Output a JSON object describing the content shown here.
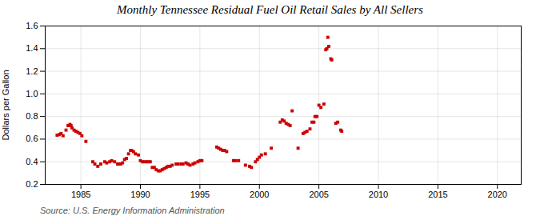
{
  "chart_data": {
    "type": "scatter",
    "title": "Monthly Tennessee Residual Fuel Oil Retail Sales by All Sellers",
    "ylabel": "Dollars per Gallon",
    "source": "Source: U.S. Energy Information Administration",
    "x": [
      1983.0,
      1983.17,
      1983.33,
      1983.5,
      1983.75,
      1983.92,
      1984.08,
      1984.17,
      1984.25,
      1984.42,
      1984.58,
      1984.75,
      1984.92,
      1985.08,
      1985.42,
      1986.0,
      1986.17,
      1986.42,
      1986.67,
      1987.0,
      1987.17,
      1987.42,
      1987.58,
      1987.83,
      1988.08,
      1988.17,
      1988.33,
      1988.5,
      1988.67,
      1988.83,
      1989.0,
      1989.17,
      1989.25,
      1989.42,
      1989.58,
      1989.83,
      1990.0,
      1990.17,
      1990.33,
      1990.5,
      1990.67,
      1990.83,
      1991.0,
      1991.17,
      1991.33,
      1991.5,
      1991.67,
      1991.83,
      1992.0,
      1992.17,
      1992.33,
      1992.5,
      1992.67,
      1993.0,
      1993.17,
      1993.42,
      1993.58,
      1993.83,
      1994.0,
      1994.17,
      1994.42,
      1994.58,
      1994.83,
      1995.0,
      1995.17,
      1996.42,
      1996.58,
      1996.75,
      1996.92,
      1997.08,
      1997.25,
      1997.83,
      1998.0,
      1998.25,
      1998.83,
      1999.17,
      1999.33,
      1999.67,
      1999.83,
      2000.0,
      2000.17,
      2000.5,
      2001.0,
      2001.75,
      2001.92,
      2002.08,
      2002.25,
      2002.42,
      2002.58,
      2002.75,
      2003.25,
      2003.67,
      2003.83,
      2004.0,
      2004.25,
      2004.42,
      2004.58,
      2004.67,
      2004.83,
      2005.0,
      2005.17,
      2005.42,
      2005.58,
      2005.67,
      2005.75,
      2005.83,
      2006.0,
      2006.08,
      2006.42,
      2006.58,
      2006.83,
      2006.92
    ],
    "values": [
      0.635,
      0.64,
      0.65,
      0.63,
      0.68,
      0.72,
      0.73,
      0.72,
      0.7,
      0.68,
      0.67,
      0.66,
      0.65,
      0.63,
      0.58,
      0.4,
      0.38,
      0.36,
      0.38,
      0.4,
      0.39,
      0.4,
      0.41,
      0.4,
      0.38,
      0.38,
      0.38,
      0.39,
      0.42,
      0.43,
      0.47,
      0.5,
      0.5,
      0.49,
      0.47,
      0.46,
      0.41,
      0.4,
      0.4,
      0.4,
      0.4,
      0.4,
      0.35,
      0.35,
      0.33,
      0.32,
      0.32,
      0.33,
      0.34,
      0.35,
      0.36,
      0.36,
      0.37,
      0.38,
      0.38,
      0.38,
      0.38,
      0.39,
      0.38,
      0.37,
      0.38,
      0.39,
      0.4,
      0.41,
      0.41,
      0.53,
      0.52,
      0.51,
      0.5,
      0.5,
      0.49,
      0.41,
      0.41,
      0.41,
      0.37,
      0.36,
      0.35,
      0.4,
      0.42,
      0.44,
      0.46,
      0.47,
      0.52,
      0.75,
      0.77,
      0.76,
      0.74,
      0.73,
      0.72,
      0.85,
      0.52,
      0.65,
      0.66,
      0.67,
      0.69,
      0.75,
      0.75,
      0.8,
      0.8,
      0.9,
      0.88,
      0.91,
      1.39,
      1.4,
      1.5,
      1.42,
      1.31,
      1.3,
      0.74,
      0.75,
      0.68,
      0.67
    ],
    "color": "#cc0000",
    "marker": "square",
    "xlim": [
      1982,
      2022
    ],
    "ylim": [
      0.2,
      1.6
    ],
    "xticks": [
      1985,
      1990,
      1995,
      2000,
      2005,
      2010,
      2015,
      2020
    ],
    "yticks": [
      0.2,
      0.4,
      0.6,
      0.8,
      {
        "value": 1.0,
        "label": "1.0"
      },
      1.2,
      1.4,
      1.6
    ],
    "grid": true
  }
}
